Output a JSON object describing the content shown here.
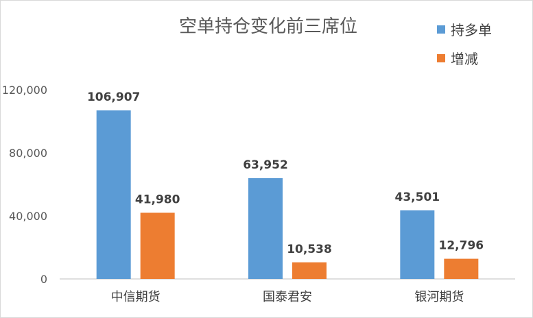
{
  "chart_data": {
    "type": "bar",
    "title": "空单持仓变化前三席位",
    "categories": [
      "中信期货",
      "国泰君安",
      "银河期货"
    ],
    "series": [
      {
        "name": "持多单",
        "values": [
          106907,
          63952,
          43501
        ],
        "color": "#5b9bd5"
      },
      {
        "name": "增减",
        "values": [
          41980,
          10538,
          12796
        ],
        "color": "#ed7d31"
      }
    ],
    "ylim": [
      0,
      120000
    ],
    "yticks": [
      "0",
      "40,000",
      "80,000",
      "120,000"
    ],
    "ytick_values": [
      0,
      40000,
      80000,
      120000
    ],
    "data_labels": [
      [
        "106,907",
        "63,952",
        "43,501"
      ],
      [
        "41,980",
        "10,538",
        "12,796"
      ]
    ],
    "grid": false,
    "legend_position": "top-right",
    "xlabel": "",
    "ylabel": ""
  }
}
